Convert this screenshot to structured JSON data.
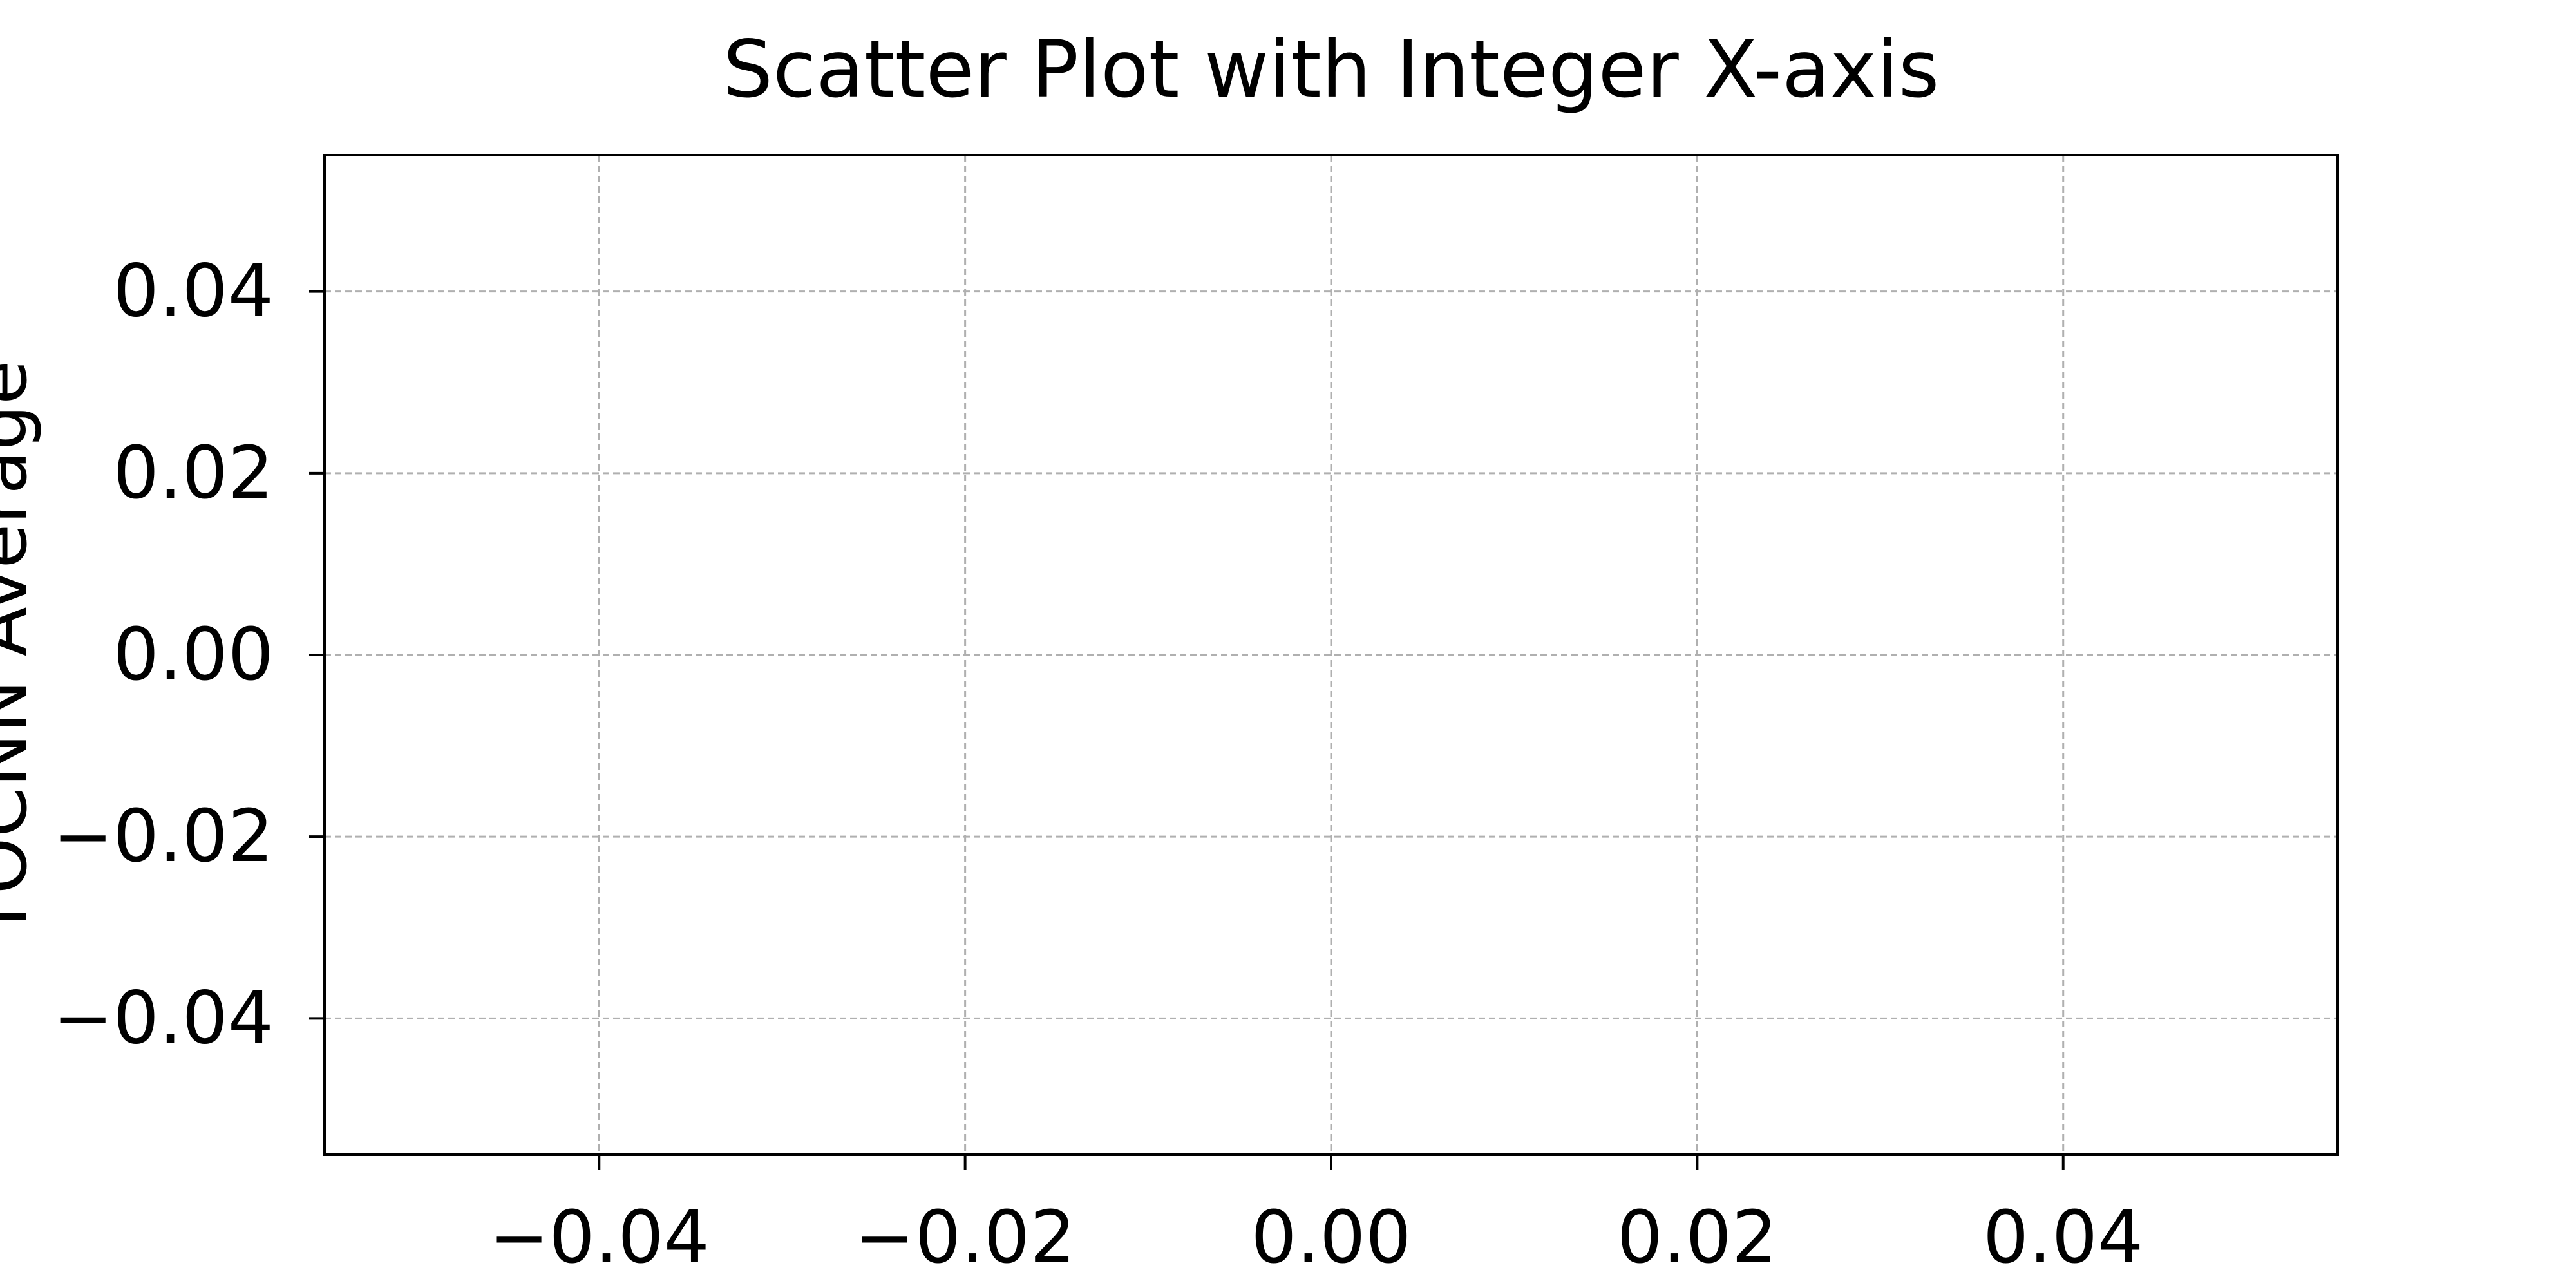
{
  "chart_data": {
    "type": "scatter",
    "title": "Scatter Plot with Integer X-axis",
    "xlabel": "",
    "ylabel": "TOCNN Average",
    "x": [],
    "y": [],
    "series": [],
    "xlim": [
      -0.055,
      0.055
    ],
    "ylim": [
      -0.055,
      0.055
    ],
    "x_ticks": [
      -0.04,
      -0.02,
      0.0,
      0.02,
      0.04
    ],
    "x_tick_labels": [
      "−0.04",
      "−0.02",
      "0.00",
      "0.02",
      "0.04"
    ],
    "y_ticks": [
      0.04,
      0.02,
      0.0,
      -0.02,
      -0.04
    ],
    "y_tick_labels": [
      "0.04",
      "0.02",
      "0.00",
      "−0.02",
      "−0.04"
    ],
    "grid": true,
    "legend": "none"
  },
  "colors": {
    "background": "#ffffff",
    "axes_edge": "#000000",
    "grid": "#b0b0b0",
    "text": "#000000"
  }
}
